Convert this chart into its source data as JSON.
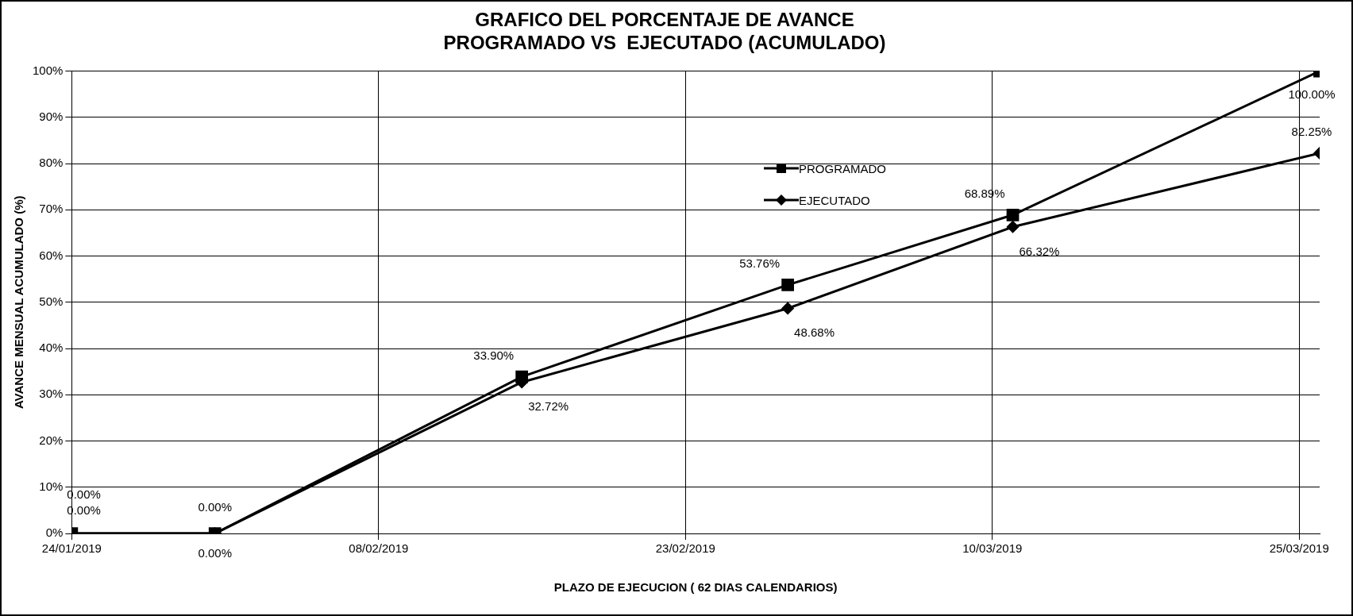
{
  "chart_data": {
    "type": "line",
    "title": "GRAFICO DEL PORCENTAJE DE AVANCE\nPROGRAMADO VS  EJECUTADO (ACUMULADO)",
    "xlabel": "PLAZO DE EJECUCION ( 62 DIAS CALENDARIOS)",
    "ylabel": "AVANCE MENSUAL ACUMULADO (%)",
    "x": [
      "2019-01-24",
      "2019-01-31",
      "2019-02-15",
      "2019-02-28",
      "2019-03-11",
      "2019-03-26"
    ],
    "series": [
      {
        "name": "PROGRAMADO",
        "color": "#000000",
        "marker": "square",
        "values": [
          0,
          0,
          33.9,
          53.76,
          68.89,
          100
        ],
        "value_labels": [
          "0.00%",
          "0.00%",
          "33.90%",
          "53.76%",
          "68.89%",
          "100.00%"
        ]
      },
      {
        "name": "EJECUTADO",
        "color": "#000000",
        "marker": "diamond",
        "values": [
          0,
          0,
          32.72,
          48.68,
          66.32,
          82.25
        ],
        "value_labels": [
          "0.00%",
          "0.00%",
          "32.72%",
          "48.68%",
          "66.32%",
          "82.25%"
        ]
      }
    ],
    "xlim": [
      "2019-01-24",
      "2019-03-26"
    ],
    "xticks": [
      {
        "value": "2019-01-24",
        "label": "24/01/2019"
      },
      {
        "value": "2019-02-08",
        "label": "08/02/2019"
      },
      {
        "value": "2019-02-23",
        "label": "23/02/2019"
      },
      {
        "value": "2019-03-10",
        "label": "10/03/2019"
      },
      {
        "value": "2019-03-25",
        "label": "25/03/2019"
      }
    ],
    "ylim": [
      0,
      100
    ],
    "yticks": [
      {
        "value": 0,
        "label": "0%"
      },
      {
        "value": 10,
        "label": "10%"
      },
      {
        "value": 20,
        "label": "20%"
      },
      {
        "value": 30,
        "label": "30%"
      },
      {
        "value": 40,
        "label": "40%"
      },
      {
        "value": 50,
        "label": "50%"
      },
      {
        "value": 60,
        "label": "60%"
      },
      {
        "value": 70,
        "label": "70%"
      },
      {
        "value": 80,
        "label": "80%"
      },
      {
        "value": 90,
        "label": "90%"
      },
      {
        "value": 100,
        "label": "100%"
      }
    ],
    "grid": true,
    "legend": "top right",
    "line_style": "solid"
  }
}
